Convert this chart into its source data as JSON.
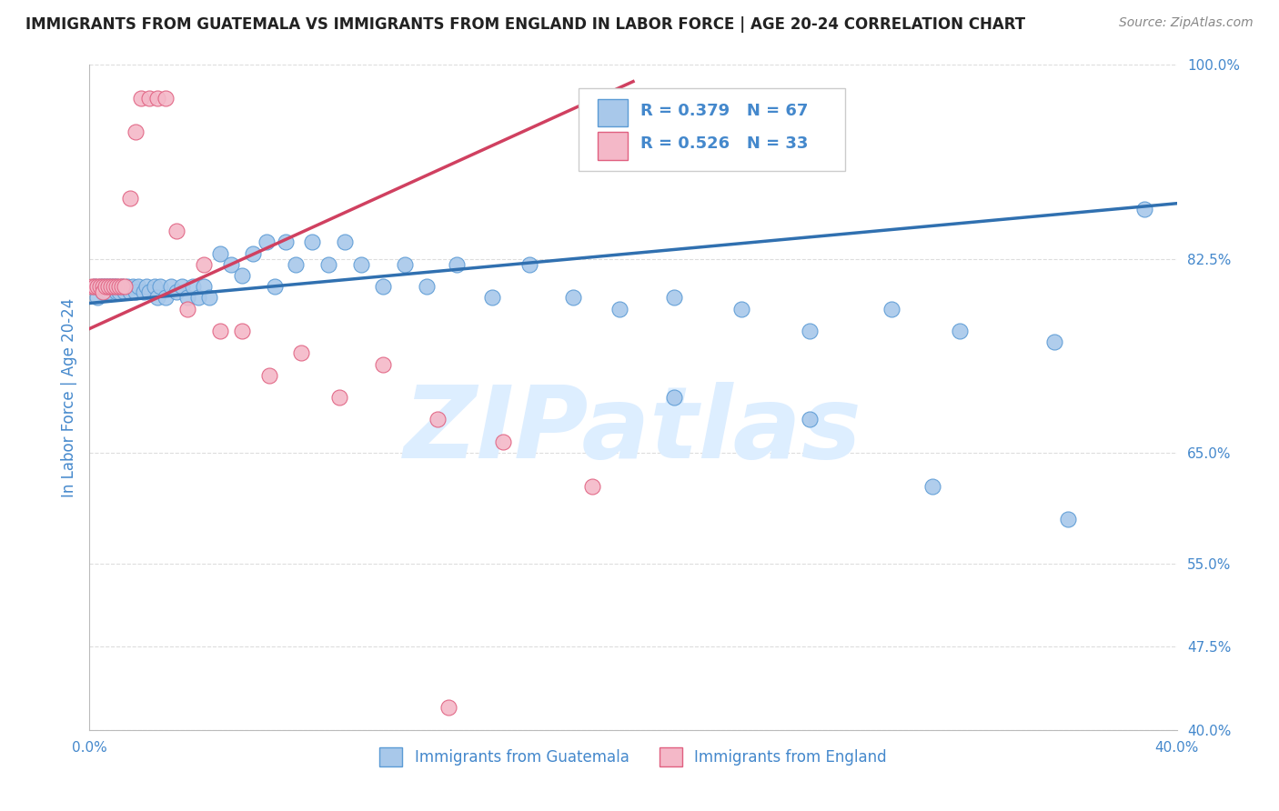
{
  "title": "IMMIGRANTS FROM GUATEMALA VS IMMIGRANTS FROM ENGLAND IN LABOR FORCE | AGE 20-24 CORRELATION CHART",
  "source": "Source: ZipAtlas.com",
  "ylabel": "In Labor Force | Age 20-24",
  "xlim": [
    0.0,
    0.4
  ],
  "ylim": [
    0.4,
    1.0
  ],
  "yticks": [
    0.4,
    0.475,
    0.55,
    0.65,
    0.825,
    1.0
  ],
  "xticks": [
    0.0,
    0.08,
    0.16,
    0.24,
    0.32,
    0.4
  ],
  "R_blue": 0.379,
  "N_blue": 67,
  "R_pink": 0.526,
  "N_pink": 33,
  "blue_color": "#a8c8ea",
  "pink_color": "#f4b8c8",
  "blue_edge_color": "#5b9bd5",
  "pink_edge_color": "#e06080",
  "blue_line_color": "#3070b0",
  "pink_line_color": "#d04060",
  "axis_label_color": "#4488cc",
  "tick_color": "#4488cc",
  "legend_text_color": "#4488cc",
  "title_color": "#222222",
  "source_color": "#888888",
  "watermark_color": "#ddeeff",
  "background_color": "#ffffff",
  "grid_color": "#dddddd",
  "blue_x": [
    0.002,
    0.003,
    0.004,
    0.005,
    0.005,
    0.006,
    0.006,
    0.007,
    0.007,
    0.008,
    0.009,
    0.01,
    0.01,
    0.011,
    0.012,
    0.013,
    0.014,
    0.015,
    0.016,
    0.017,
    0.018,
    0.02,
    0.021,
    0.022,
    0.024,
    0.025,
    0.026,
    0.028,
    0.03,
    0.032,
    0.034,
    0.036,
    0.038,
    0.04,
    0.042,
    0.044,
    0.048,
    0.052,
    0.056,
    0.06,
    0.065,
    0.068,
    0.072,
    0.076,
    0.082,
    0.088,
    0.094,
    0.1,
    0.108,
    0.116,
    0.124,
    0.135,
    0.148,
    0.162,
    0.178,
    0.195,
    0.215,
    0.24,
    0.265,
    0.295,
    0.32,
    0.355,
    0.215,
    0.265,
    0.31,
    0.36,
    0.388
  ],
  "blue_y": [
    0.8,
    0.79,
    0.8,
    0.795,
    0.8,
    0.8,
    0.795,
    0.8,
    0.795,
    0.8,
    0.8,
    0.795,
    0.8,
    0.795,
    0.8,
    0.795,
    0.8,
    0.795,
    0.8,
    0.795,
    0.8,
    0.795,
    0.8,
    0.795,
    0.8,
    0.79,
    0.8,
    0.79,
    0.8,
    0.795,
    0.8,
    0.79,
    0.8,
    0.79,
    0.8,
    0.79,
    0.83,
    0.82,
    0.81,
    0.83,
    0.84,
    0.8,
    0.84,
    0.82,
    0.84,
    0.82,
    0.84,
    0.82,
    0.8,
    0.82,
    0.8,
    0.82,
    0.79,
    0.82,
    0.79,
    0.78,
    0.79,
    0.78,
    0.76,
    0.78,
    0.76,
    0.75,
    0.7,
    0.68,
    0.62,
    0.59,
    0.87
  ],
  "pink_x": [
    0.001,
    0.002,
    0.003,
    0.004,
    0.005,
    0.005,
    0.006,
    0.007,
    0.008,
    0.009,
    0.01,
    0.011,
    0.012,
    0.013,
    0.015,
    0.017,
    0.019,
    0.022,
    0.025,
    0.028,
    0.032,
    0.036,
    0.042,
    0.048,
    0.056,
    0.066,
    0.078,
    0.092,
    0.108,
    0.128,
    0.152,
    0.185,
    0.132
  ],
  "pink_y": [
    0.8,
    0.8,
    0.8,
    0.8,
    0.8,
    0.795,
    0.8,
    0.8,
    0.8,
    0.8,
    0.8,
    0.8,
    0.8,
    0.8,
    0.88,
    0.94,
    0.97,
    0.97,
    0.97,
    0.97,
    0.85,
    0.78,
    0.82,
    0.76,
    0.76,
    0.72,
    0.74,
    0.7,
    0.73,
    0.68,
    0.66,
    0.62,
    0.42
  ],
  "blue_trend_x": [
    0.0,
    0.4
  ],
  "blue_trend_y": [
    0.785,
    0.875
  ],
  "pink_trend_x": [
    0.0,
    0.2
  ],
  "pink_trend_y": [
    0.762,
    0.985
  ]
}
